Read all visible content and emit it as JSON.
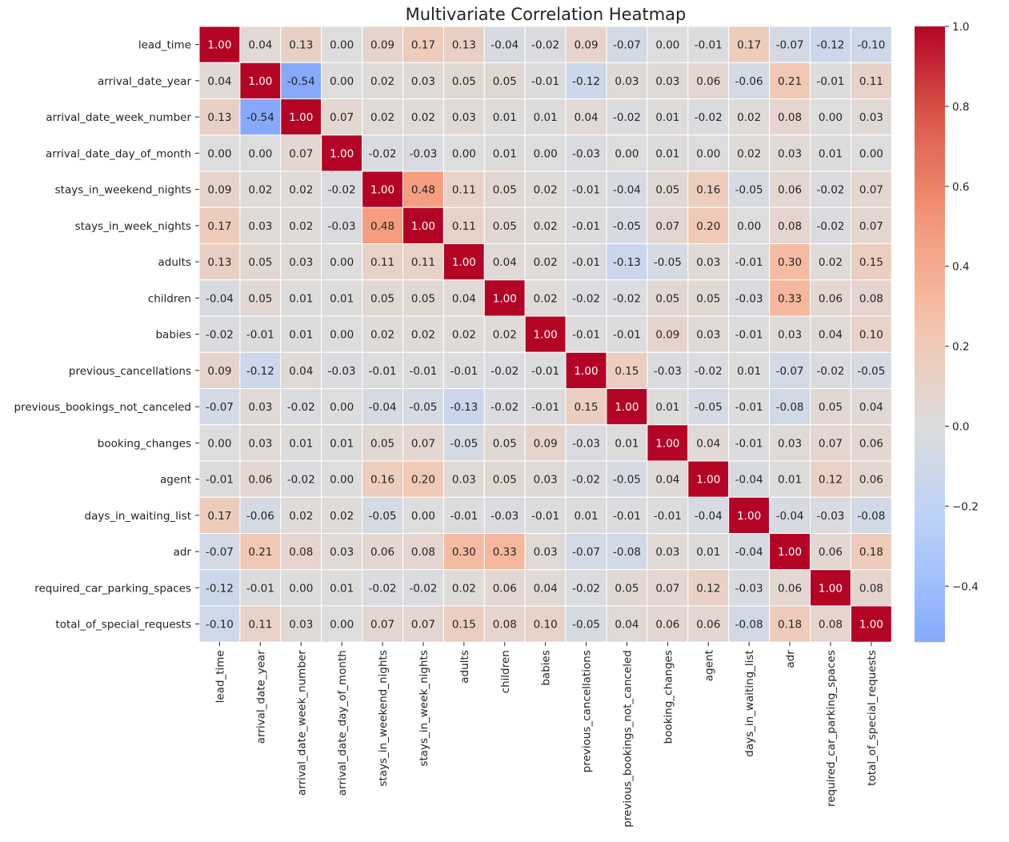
{
  "chart_data": {
    "type": "heatmap",
    "title": "Multivariate Correlation Heatmap",
    "variables": [
      "lead_time",
      "arrival_date_year",
      "arrival_date_week_number",
      "arrival_date_day_of_month",
      "stays_in_weekend_nights",
      "stays_in_week_nights",
      "adults",
      "children",
      "babies",
      "previous_cancellations",
      "previous_bookings_not_canceled",
      "booking_changes",
      "agent",
      "days_in_waiting_list",
      "adr",
      "required_car_parking_spaces",
      "total_of_special_requests"
    ],
    "matrix": [
      [
        1.0,
        0.04,
        0.13,
        0.0,
        0.09,
        0.17,
        0.13,
        -0.04,
        -0.02,
        0.09,
        -0.07,
        0.0,
        -0.01,
        0.17,
        -0.07,
        -0.12,
        -0.1
      ],
      [
        0.04,
        1.0,
        -0.54,
        -0.0,
        0.02,
        0.03,
        0.05,
        0.05,
        -0.01,
        -0.12,
        0.03,
        0.03,
        0.06,
        -0.06,
        0.21,
        -0.01,
        0.11
      ],
      [
        0.13,
        -0.54,
        1.0,
        0.07,
        0.02,
        0.02,
        0.03,
        0.01,
        0.01,
        0.04,
        -0.02,
        0.01,
        -0.02,
        0.02,
        0.08,
        0.0,
        0.03
      ],
      [
        0.0,
        -0.0,
        0.07,
        1.0,
        -0.02,
        -0.03,
        0.0,
        0.01,
        -0.0,
        -0.03,
        -0.0,
        0.01,
        0.0,
        0.02,
        0.03,
        0.01,
        0.0
      ],
      [
        0.09,
        0.02,
        0.02,
        -0.02,
        1.0,
        0.48,
        0.11,
        0.05,
        0.02,
        -0.01,
        -0.04,
        0.05,
        0.16,
        -0.05,
        0.06,
        -0.02,
        0.07
      ],
      [
        0.17,
        0.03,
        0.02,
        -0.03,
        0.48,
        1.0,
        0.11,
        0.05,
        0.02,
        -0.01,
        -0.05,
        0.07,
        0.2,
        -0.0,
        0.08,
        -0.02,
        0.07
      ],
      [
        0.13,
        0.05,
        0.03,
        0.0,
        0.11,
        0.11,
        1.0,
        0.04,
        0.02,
        -0.01,
        -0.13,
        -0.05,
        0.03,
        -0.01,
        0.3,
        0.02,
        0.15
      ],
      [
        -0.04,
        0.05,
        0.01,
        0.01,
        0.05,
        0.05,
        0.04,
        1.0,
        0.02,
        -0.02,
        -0.02,
        0.05,
        0.05,
        -0.03,
        0.33,
        0.06,
        0.08
      ],
      [
        -0.02,
        -0.01,
        0.01,
        -0.0,
        0.02,
        0.02,
        0.02,
        0.02,
        1.0,
        -0.01,
        -0.01,
        0.09,
        0.03,
        -0.01,
        0.03,
        0.04,
        0.1
      ],
      [
        0.09,
        -0.12,
        0.04,
        -0.03,
        -0.01,
        -0.01,
        -0.01,
        -0.02,
        -0.01,
        1.0,
        0.15,
        -0.03,
        -0.02,
        0.01,
        -0.07,
        -0.02,
        -0.05
      ],
      [
        -0.07,
        0.03,
        -0.02,
        -0.0,
        -0.04,
        -0.05,
        -0.13,
        -0.02,
        -0.01,
        0.15,
        1.0,
        0.01,
        -0.05,
        -0.01,
        -0.08,
        0.05,
        0.04
      ],
      [
        0.0,
        0.03,
        0.01,
        0.01,
        0.05,
        0.07,
        -0.05,
        0.05,
        0.09,
        -0.03,
        0.01,
        1.0,
        0.04,
        -0.01,
        0.03,
        0.07,
        0.06
      ],
      [
        -0.01,
        0.06,
        -0.02,
        0.0,
        0.16,
        0.2,
        0.03,
        0.05,
        0.03,
        -0.02,
        -0.05,
        0.04,
        1.0,
        -0.04,
        0.01,
        0.12,
        0.06
      ],
      [
        0.17,
        -0.06,
        0.02,
        0.02,
        -0.05,
        -0.0,
        -0.01,
        -0.03,
        -0.01,
        0.01,
        -0.01,
        -0.01,
        -0.04,
        1.0,
        -0.04,
        -0.03,
        -0.08
      ],
      [
        -0.07,
        0.21,
        0.08,
        0.03,
        0.06,
        0.08,
        0.3,
        0.33,
        0.03,
        -0.07,
        -0.08,
        0.03,
        0.01,
        -0.04,
        1.0,
        0.06,
        0.18
      ],
      [
        -0.12,
        -0.01,
        0.0,
        0.01,
        -0.02,
        -0.02,
        0.02,
        0.06,
        0.04,
        -0.02,
        0.05,
        0.07,
        0.12,
        -0.03,
        0.06,
        1.0,
        0.08
      ],
      [
        -0.1,
        0.11,
        0.03,
        0.0,
        0.07,
        0.07,
        0.15,
        0.08,
        0.1,
        -0.05,
        0.04,
        0.06,
        0.06,
        -0.08,
        0.18,
        0.08,
        1.0
      ]
    ],
    "colormap": "coolwarm",
    "color_center": 0,
    "vmin": -0.54,
    "vmax": 1.0,
    "colorbar_ticks": [
      "1.0",
      "0.8",
      "0.6",
      "0.4",
      "0.2",
      "0.0",
      "−0.2",
      "−0.4"
    ],
    "colorbar_tick_values": [
      1.0,
      0.8,
      0.6,
      0.4,
      0.2,
      0.0,
      -0.2,
      -0.4
    ],
    "annotated": true,
    "grid": false,
    "legend": "colorbar-right"
  }
}
